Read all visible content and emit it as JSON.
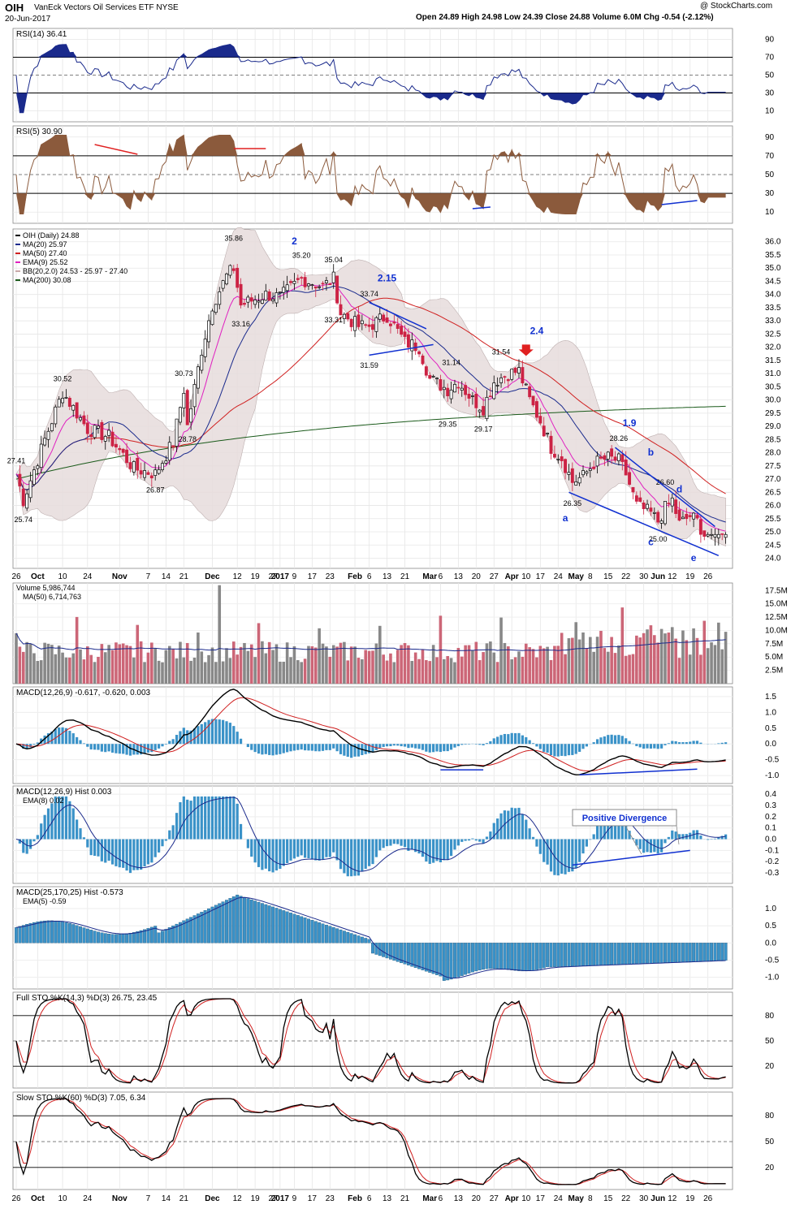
{
  "header": {
    "ticker": "OIH",
    "name": "VanEck Vectors Oil Services ETF",
    "exchange": "NYSE",
    "date": "20-Jun-2017",
    "quote": "Open 24.89  High 24.98  Low 24.39  Close 24.88  Volume 6.0M  Chg -0.54 (-2.12%)",
    "watermark": "@ StockCharts.com"
  },
  "colors": {
    "up": "#000000",
    "down": "#cc2244",
    "bb": "#e8dede",
    "ma20": "#1a2a8c",
    "ma50": "#d02020",
    "ema9": "#e020c0",
    "ma200": "#1a5a1a",
    "hist": "#3a92c8",
    "volUp": "#888888",
    "volDn": "#cc6677",
    "blueLine": "#1030d0"
  },
  "xaxis": {
    "ticks": [
      {
        "d": 0,
        "l": "26"
      },
      {
        "d": 6,
        "l": "Oct"
      },
      {
        "d": 13,
        "l": "10"
      },
      {
        "d": 20,
        "l": "24"
      },
      {
        "d": 29,
        "l": "Nov"
      },
      {
        "d": 37,
        "l": "7"
      },
      {
        "d": 42,
        "l": "14"
      },
      {
        "d": 47,
        "l": "21"
      },
      {
        "d": 55,
        "l": "Dec"
      },
      {
        "d": 62,
        "l": "12"
      },
      {
        "d": 67,
        "l": "19"
      },
      {
        "d": 72,
        "l": "27"
      },
      {
        "d": 74,
        "l": "2017"
      },
      {
        "d": 78,
        "l": "9"
      },
      {
        "d": 83,
        "l": "17"
      },
      {
        "d": 88,
        "l": "23"
      },
      {
        "d": 95,
        "l": "Feb"
      },
      {
        "d": 99,
        "l": "6"
      },
      {
        "d": 104,
        "l": "13"
      },
      {
        "d": 109,
        "l": "21"
      },
      {
        "d": 116,
        "l": "Mar"
      },
      {
        "d": 119,
        "l": "6"
      },
      {
        "d": 124,
        "l": "13"
      },
      {
        "d": 129,
        "l": "20"
      },
      {
        "d": 134,
        "l": "27"
      },
      {
        "d": 139,
        "l": "Apr"
      },
      {
        "d": 143,
        "l": "10"
      },
      {
        "d": 147,
        "l": "17"
      },
      {
        "d": 152,
        "l": "24"
      },
      {
        "d": 157,
        "l": "May"
      },
      {
        "d": 161,
        "l": "8"
      },
      {
        "d": 166,
        "l": "15"
      },
      {
        "d": 171,
        "l": "22"
      },
      {
        "d": 176,
        "l": "30"
      },
      {
        "d": 180,
        "l": "Jun"
      },
      {
        "d": 184,
        "l": "12"
      },
      {
        "d": 189,
        "l": "19"
      },
      {
        "d": 194,
        "l": "26"
      }
    ]
  },
  "panels": [
    {
      "id": "rsi14",
      "title": "RSI(14) 36.41",
      "ticks": [
        {
          "v": 90,
          "l": "90"
        },
        {
          "v": 70,
          "l": "70"
        },
        {
          "v": 50,
          "l": "50"
        },
        {
          "v": 30,
          "l": "30"
        },
        {
          "v": 10,
          "l": "10"
        }
      ]
    },
    {
      "id": "rsi5",
      "title": "RSI(5) 30.90",
      "ticks": [
        {
          "v": 90,
          "l": "90"
        },
        {
          "v": 70,
          "l": "70"
        },
        {
          "v": 50,
          "l": "50"
        },
        {
          "v": 30,
          "l": "30"
        },
        {
          "v": 10,
          "l": "10"
        }
      ]
    },
    {
      "id": "price",
      "title": "OIH (Daily) 24.88",
      "legend": [
        "MA(20) 25.97",
        "MA(50) 27.40",
        "EMA(9) 25.52",
        "BB(20,2.0) 24.53 - 25.97 - 27.40",
        "MA(200) 30.08"
      ]
    },
    {
      "id": "vol",
      "title": "Volume 5,986,744",
      "legend": [
        "MA(50) 6,714,763"
      ],
      "ticks": [
        {
          "v": 17.5,
          "l": "17.5M"
        },
        {
          "v": 15,
          "l": "15.0M"
        },
        {
          "v": 12.5,
          "l": "12.5M"
        },
        {
          "v": 10,
          "l": "10.0M"
        },
        {
          "v": 7.5,
          "l": "7.5M"
        },
        {
          "v": 5,
          "l": "5.0M"
        },
        {
          "v": 2.5,
          "l": "2.5M"
        }
      ]
    },
    {
      "id": "macd",
      "title": "MACD(12,26,9) -0.617, -0.620, 0.003",
      "ticks": [
        {
          "v": 1.5,
          "l": "1.5"
        },
        {
          "v": 1,
          "l": "1.0"
        },
        {
          "v": 0.5,
          "l": "0.5"
        },
        {
          "v": 0,
          "l": "0.0"
        },
        {
          "v": -0.5,
          "l": "-0.5"
        },
        {
          "v": -1,
          "l": "-1.0"
        }
      ]
    },
    {
      "id": "hist",
      "title": "MACD(12,26,9) Hist 0.003",
      "legend": [
        "EMA(8) 0.02"
      ],
      "ticks": [
        {
          "v": 0.4,
          "l": "0.4"
        },
        {
          "v": 0.3,
          "l": "0.3"
        },
        {
          "v": 0.2,
          "l": "0.2"
        },
        {
          "v": 0.1,
          "l": "0.1"
        },
        {
          "v": 0,
          "l": "0.0"
        },
        {
          "v": -0.1,
          "l": "-0.1"
        },
        {
          "v": -0.2,
          "l": "-0.2"
        },
        {
          "v": -0.3,
          "l": "-0.3"
        }
      ]
    },
    {
      "id": "macdl",
      "title": "MACD(25,170,25) Hist -0.573",
      "legend": [
        "EMA(5) -0.59"
      ],
      "ticks": [
        {
          "v": 1,
          "l": "1.0"
        },
        {
          "v": 0.5,
          "l": "0.5"
        },
        {
          "v": 0,
          "l": "0.0"
        },
        {
          "v": -0.5,
          "l": "-0.5"
        },
        {
          "v": -1,
          "l": "-1.0"
        }
      ]
    },
    {
      "id": "fsto",
      "title": "Full STO %K(14,3) %D(3) 26.75, 23.45",
      "ticks": [
        {
          "v": 80,
          "l": "80"
        },
        {
          "v": 50,
          "l": "50"
        },
        {
          "v": 20,
          "l": "20"
        }
      ]
    },
    {
      "id": "ssto",
      "title": "Slow STO %K(60) %D(3) 7.05, 6.34",
      "ticks": [
        {
          "v": 80,
          "l": "80"
        },
        {
          "v": 50,
          "l": "50"
        },
        {
          "v": 20,
          "l": "20"
        }
      ]
    }
  ],
  "price_ticks": [
    "36.0",
    "35.5",
    "35.0",
    "34.5",
    "34.0",
    "33.5",
    "33.0",
    "32.5",
    "32.0",
    "31.5",
    "31.0",
    "30.5",
    "30.0",
    "29.5",
    "29.0",
    "28.5",
    "28.0",
    "27.5",
    "27.0",
    "26.5",
    "26.0",
    "25.5",
    "25.0",
    "24.5",
    "24.0"
  ],
  "annotations": {
    "prices": [
      {
        "d": 0,
        "v": 27.41,
        "t": "27.41",
        "p": "a"
      },
      {
        "d": 2,
        "v": 25.74,
        "t": "25.74",
        "p": "b"
      },
      {
        "d": 13,
        "v": 30.52,
        "t": "30.52",
        "p": "a"
      },
      {
        "d": 39,
        "v": 26.87,
        "t": "26.87",
        "p": "b"
      },
      {
        "d": 47,
        "v": 30.73,
        "t": "30.73",
        "p": "a"
      },
      {
        "d": 48,
        "v": 28.78,
        "t": "28.78",
        "p": "b"
      },
      {
        "d": 61,
        "v": 35.86,
        "t": "35.86",
        "p": "a"
      },
      {
        "d": 63,
        "v": 33.16,
        "t": "33.16",
        "p": "b"
      },
      {
        "d": 80,
        "v": 35.2,
        "t": "35.20",
        "p": "a"
      },
      {
        "d": 89,
        "v": 35.04,
        "t": "35.04",
        "p": "a"
      },
      {
        "d": 89,
        "v": 33.31,
        "t": "33.31",
        "p": "b"
      },
      {
        "d": 99,
        "v": 33.74,
        "t": "33.74",
        "p": "a"
      },
      {
        "d": 99,
        "v": 31.59,
        "t": "31.59",
        "p": "b"
      },
      {
        "d": 122,
        "v": 31.14,
        "t": "31.14",
        "p": "a"
      },
      {
        "d": 121,
        "v": 29.35,
        "t": "29.35",
        "p": "b"
      },
      {
        "d": 131,
        "v": 29.17,
        "t": "29.17",
        "p": "b"
      },
      {
        "d": 136,
        "v": 31.54,
        "t": "31.54",
        "p": "a"
      },
      {
        "d": 156,
        "v": 26.35,
        "t": "26.35",
        "p": "b"
      },
      {
        "d": 169,
        "v": 28.26,
        "t": "28.26",
        "p": "a"
      },
      {
        "d": 180,
        "v": 25,
        "t": "25.00",
        "p": "b"
      },
      {
        "d": 182,
        "v": 26.6,
        "t": "26.60",
        "p": "a"
      }
    ],
    "waves": [
      {
        "d": 78,
        "v": 35.9,
        "t": "2"
      },
      {
        "d": 104,
        "v": 34.5,
        "t": "2.15"
      },
      {
        "d": 146,
        "v": 32.5,
        "t": "2.4"
      },
      {
        "d": 172,
        "v": 29,
        "t": "1.9"
      },
      {
        "d": 178,
        "v": 27.9,
        "t": "b"
      },
      {
        "d": 186,
        "v": 26.5,
        "t": "d"
      },
      {
        "d": 154,
        "v": 25.4,
        "t": "a"
      },
      {
        "d": 178,
        "v": 24.5,
        "t": "c"
      },
      {
        "d": 190,
        "v": 23.9,
        "t": "e"
      }
    ],
    "divergence": "Positive Divergence"
  },
  "chart_data": {
    "type": "candlestick",
    "title": "OIH (Daily) 24.88",
    "x_range": [
      "2016-09-26",
      "2017-06-20"
    ],
    "price_anchor_points": [
      {
        "x": "2016-09-26",
        "y": 27.41
      },
      {
        "x": "2016-09-28",
        "y": 25.74
      },
      {
        "x": "2016-10-13",
        "y": 30.52
      },
      {
        "x": "2016-11-04",
        "y": 26.87
      },
      {
        "x": "2016-11-30",
        "y": 30.73
      },
      {
        "x": "2016-12-01",
        "y": 28.78
      },
      {
        "x": "2016-12-12",
        "y": 35.86
      },
      {
        "x": "2016-12-14",
        "y": 33.16
      },
      {
        "x": "2017-01-10",
        "y": 35.2
      },
      {
        "x": "2017-01-24",
        "y": 35.04
      },
      {
        "x": "2017-02-13",
        "y": 33.74
      },
      {
        "x": "2017-02-07",
        "y": 31.59
      },
      {
        "x": "2017-03-14",
        "y": 31.14
      },
      {
        "x": "2017-03-13",
        "y": 29.35
      },
      {
        "x": "2017-03-28",
        "y": 29.17
      },
      {
        "x": "2017-04-05",
        "y": 31.54
      },
      {
        "x": "2017-05-05",
        "y": 26.35
      },
      {
        "x": "2017-05-23",
        "y": 28.26
      },
      {
        "x": "2017-06-05",
        "y": 25.0
      },
      {
        "x": "2017-06-08",
        "y": 26.6
      },
      {
        "x": "2017-06-20",
        "y": 24.88
      }
    ],
    "last": {
      "open": 24.89,
      "high": 24.98,
      "low": 24.39,
      "close": 24.88,
      "volume": "6.0M"
    },
    "indicators": {
      "MA20": 25.97,
      "MA50": 27.4,
      "EMA9": 25.52,
      "BB": [
        24.53,
        25.97,
        27.4
      ],
      "MA200": 30.08,
      "RSI14": 36.41,
      "RSI5": 30.9,
      "MACD": [
        -0.617,
        -0.62,
        0.003
      ],
      "MACD_long_hist": -0.573,
      "FullSTO": [
        26.75,
        23.45
      ],
      "SlowSTO": [
        7.05,
        6.34
      ]
    },
    "ylim": [
      24,
      36
    ]
  }
}
